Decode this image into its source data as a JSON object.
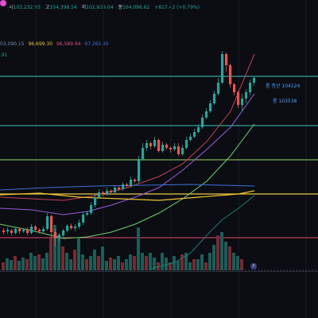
{
  "header": {
    "ohlc": [
      {
        "label": "시",
        "value": "103,232.93"
      },
      {
        "label": "고",
        "value": "104,398.54"
      },
      {
        "label": "저",
        "value": "102,939.04"
      },
      {
        "label": "종",
        "value": "104,096.62"
      }
    ],
    "change": "+817.42 (+0.79%)"
  },
  "ma_row": [
    {
      "value": "03,090.15",
      "color": "#7e8aa8"
    },
    {
      "value": "96,699.30",
      "color": "#f0c430"
    },
    {
      "value": "96,589.94",
      "color": "#d84f84"
    },
    {
      "value": "97,265.85",
      "color": "#3f6fd9"
    }
  ],
  "ma_row2": ".91",
  "price_labels": {
    "long_liq": "롱 청산 104124",
    "long": "롱 103538"
  },
  "colors": {
    "up": "#26a69a",
    "down": "#ef5350",
    "bg": "#0b0d12"
  },
  "vol_icon": "⚡"
}
